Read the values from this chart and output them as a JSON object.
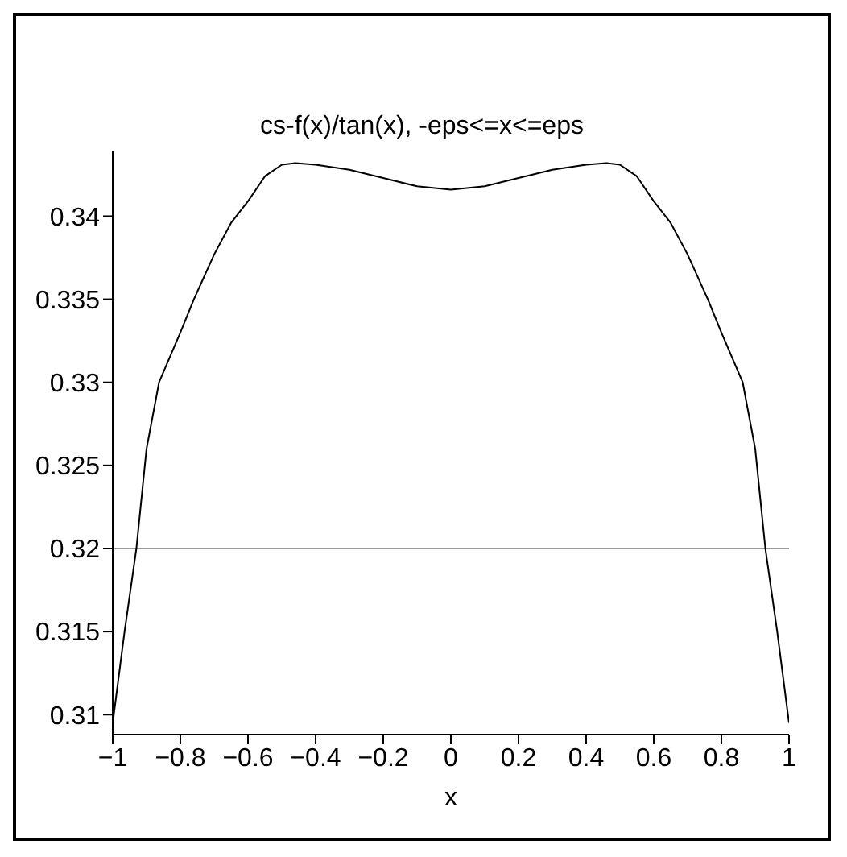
{
  "chart_data": {
    "type": "line",
    "title": "cs-f(x)/tan(x), -eps<=x<=eps",
    "xlabel": "x",
    "x": [
      -1,
      -0.965,
      -0.93,
      -0.9,
      -0.863,
      -0.8,
      -0.76,
      -0.7,
      -0.65,
      -0.6,
      -0.55,
      -0.5,
      -0.46,
      -0.4,
      -0.3,
      -0.2,
      -0.1,
      0,
      0.1,
      0.2,
      0.3,
      0.4,
      0.46,
      0.5,
      0.55,
      0.6,
      0.65,
      0.7,
      0.76,
      0.8,
      0.863,
      0.9,
      0.93,
      0.965,
      1
    ],
    "series": [
      {
        "color": "#000000",
        "values": [
          0.3095,
          0.315,
          0.32,
          0.326,
          0.33,
          0.333,
          0.335,
          0.3377,
          0.3396,
          0.3409,
          0.3424,
          0.3431,
          0.3432,
          0.3431,
          0.3428,
          0.3423,
          0.3418,
          0.3416,
          0.3418,
          0.3423,
          0.3428,
          0.3431,
          0.3432,
          0.3431,
          0.3424,
          0.3409,
          0.3396,
          0.3377,
          0.335,
          0.333,
          0.33,
          0.326,
          0.32,
          0.315,
          0.3095
        ]
      }
    ],
    "xlim": [
      -1,
      1
    ],
    "xticks": [
      -1,
      -0.8,
      -0.6,
      -0.4,
      -0.2,
      0,
      0.2,
      0.4,
      0.6,
      0.8,
      1
    ],
    "ylim": [
      0.3088,
      0.3439
    ],
    "yticks": [
      0.31,
      0.315,
      0.32,
      0.325,
      0.33,
      0.335,
      0.34
    ],
    "ref_lines": [
      {
        "axis": "y",
        "value": 0.32,
        "color": "#999999"
      }
    ],
    "grid": false,
    "legend": false,
    "marker": "none",
    "line_style": "solid"
  }
}
